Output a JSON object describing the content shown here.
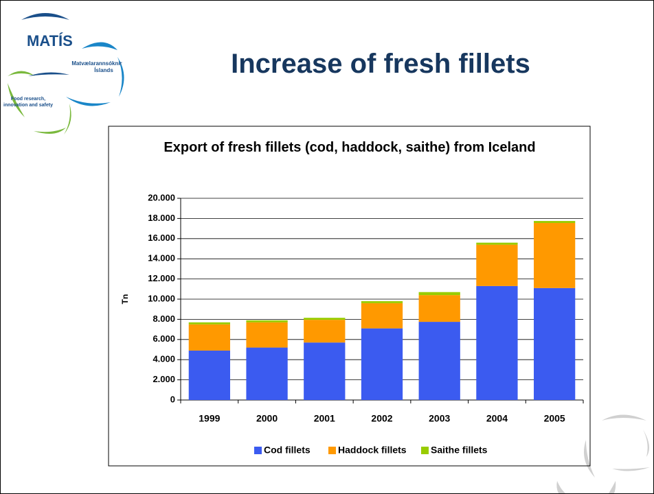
{
  "header": {
    "title": "Increase of fresh fillets",
    "logo": {
      "name": "MATÍS",
      "subtitle_lines": [
        "Matvælarannsóknir",
        "Íslands"
      ],
      "tagline_lines": [
        "Food research,",
        "innovation and safety"
      ]
    }
  },
  "chart_data": {
    "type": "stacked-bar",
    "title": "Export of fresh fillets (cod, haddock, saithe) from Iceland",
    "y_label": "Tn",
    "categories": [
      "1999",
      "2000",
      "2001",
      "2002",
      "2003",
      "2004",
      "2005"
    ],
    "series": [
      {
        "name": "Cod fillets",
        "color": "#3b5bf0",
        "values": [
          4900,
          5200,
          5700,
          7100,
          7750,
          11300,
          11100
        ]
      },
      {
        "name": "Haddock fillets",
        "color": "#ff9900",
        "values": [
          2600,
          2500,
          2250,
          2500,
          2650,
          4100,
          6450
        ]
      },
      {
        "name": "Saithe fillets",
        "color": "#99cc00",
        "values": [
          200,
          200,
          200,
          200,
          300,
          200,
          200
        ]
      }
    ],
    "ylim": [
      0,
      20000
    ],
    "yticks": [
      0,
      {
        "value": 2000,
        "label": "2.000"
      },
      {
        "value": 4000,
        "label": "4.000"
      },
      {
        "value": 6000,
        "label": "6.000"
      },
      {
        "value": 8000,
        "label": "8.000"
      },
      {
        "value": 10000,
        "label": "10.000"
      },
      {
        "value": 12000,
        "label": "12.000"
      },
      {
        "value": 14000,
        "label": "14.000"
      },
      {
        "value": 16000,
        "label": "16.000"
      },
      {
        "value": 18000,
        "label": "18.000"
      },
      {
        "value": 20000,
        "label": "20.000"
      }
    ],
    "grid": true,
    "legend": "bottom"
  }
}
